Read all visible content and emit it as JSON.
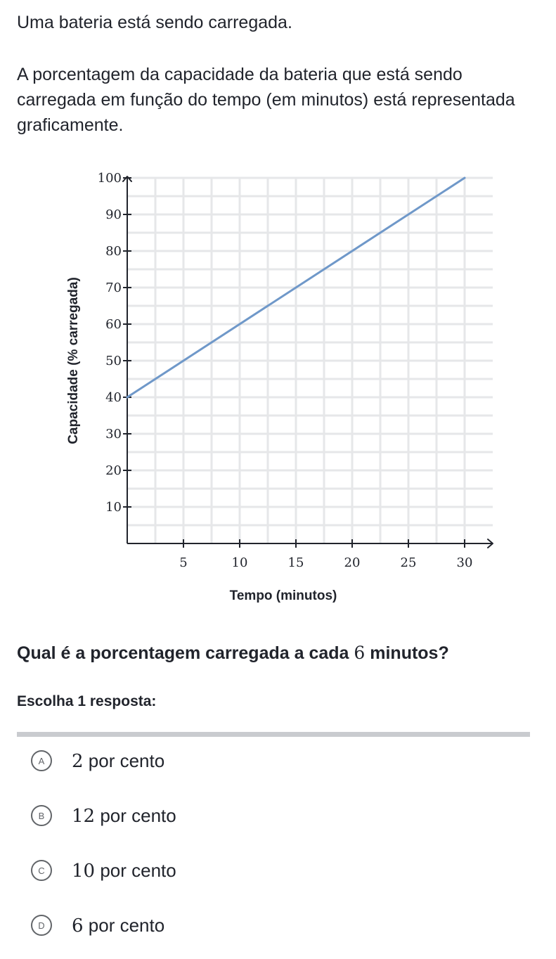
{
  "problem": {
    "intro": "Uma bateria está sendo carregada.",
    "description": "A porcentagem da capacidade da bateria que está sendo carregada em função do tempo (em minutos) está representada graficamente."
  },
  "chart_data": {
    "type": "line",
    "xlabel": "Tempo (minutos)",
    "ylabel": "Capacidade (% carregada)",
    "xlim": [
      0,
      32
    ],
    "ylim": [
      0,
      100
    ],
    "x_ticks": [
      5,
      10,
      15,
      20,
      25,
      30
    ],
    "y_ticks": [
      10,
      20,
      30,
      40,
      50,
      60,
      70,
      80,
      90,
      100
    ],
    "grid": true,
    "series": [
      {
        "x": [
          0,
          30
        ],
        "y": [
          40,
          100
        ],
        "color": "#6f98c9"
      }
    ]
  },
  "question": {
    "text_before": "Qual é a porcentagem carregada a cada ",
    "number": "6",
    "text_after": " minutos?"
  },
  "instruction": "Escolha 1 resposta:",
  "options": [
    {
      "letter": "A",
      "number": "2",
      "label": " por cento"
    },
    {
      "letter": "B",
      "number": "12",
      "label": " por cento"
    },
    {
      "letter": "C",
      "number": "10",
      "label": " por cento"
    },
    {
      "letter": "D",
      "number": "6",
      "label": " por cento"
    }
  ]
}
